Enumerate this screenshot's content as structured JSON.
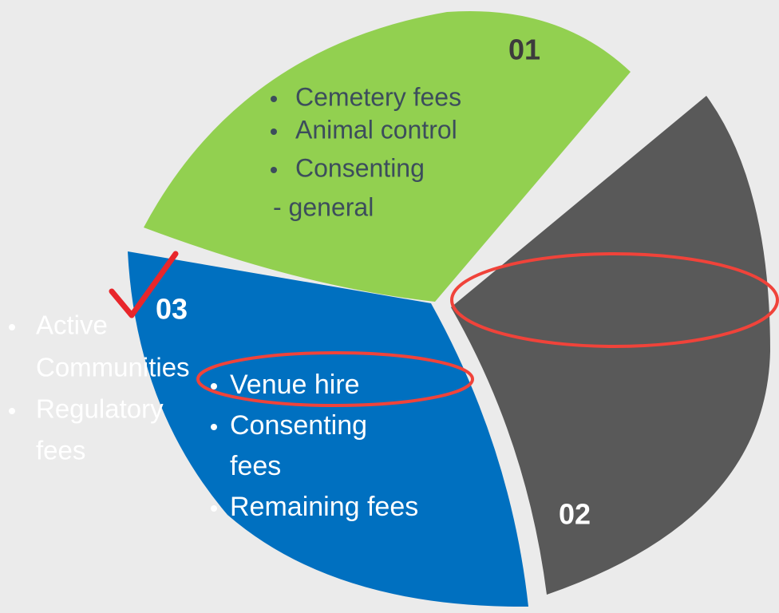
{
  "segments": [
    {
      "label": "01",
      "items": [
        "Cemetery fees",
        "Animal control",
        "Consenting",
        "- general"
      ]
    },
    {
      "label": "02",
      "items": []
    },
    {
      "label": "03",
      "items": [
        "Venue hire",
        "Consenting",
        "fees",
        "Remaining fees"
      ]
    }
  ],
  "side_list": [
    "Active",
    "Communities",
    "Regulatory",
    "fees"
  ]
}
